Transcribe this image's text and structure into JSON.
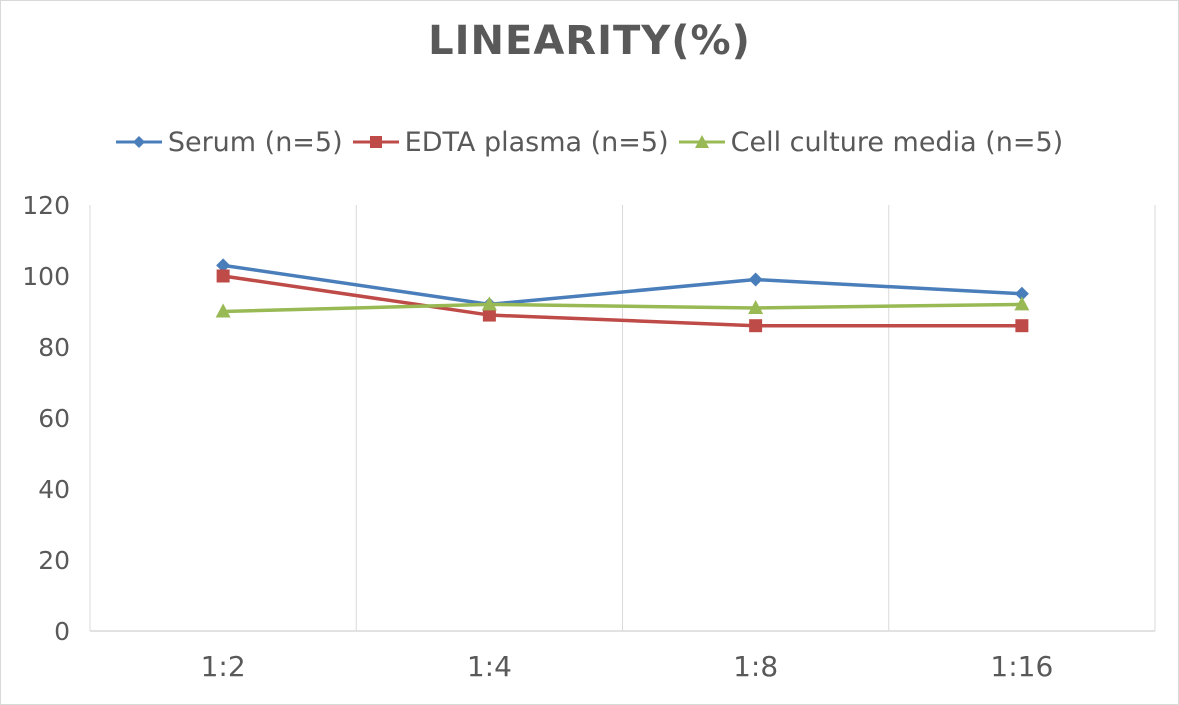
{
  "chart_data": {
    "type": "line",
    "title": "LINEARITY(%)",
    "xlabel": "",
    "ylabel": "",
    "categories": [
      "1:2",
      "1:4",
      "1:8",
      "1:16"
    ],
    "ylim": [
      0,
      120
    ],
    "yticks": [
      0,
      20,
      40,
      60,
      80,
      100,
      120
    ],
    "grid": "vertical",
    "legend_position": "top",
    "series": [
      {
        "name": "Serum (n=5)",
        "values": [
          103,
          92,
          99,
          95
        ],
        "color": "#4a7ebb",
        "marker": "diamond"
      },
      {
        "name": "EDTA plasma (n=5)",
        "values": [
          100,
          89,
          86,
          86
        ],
        "color": "#be4b48",
        "marker": "square"
      },
      {
        "name": "Cell culture media (n=5)",
        "values": [
          90,
          92,
          91,
          92
        ],
        "color": "#98b954",
        "marker": "triangle"
      }
    ]
  }
}
